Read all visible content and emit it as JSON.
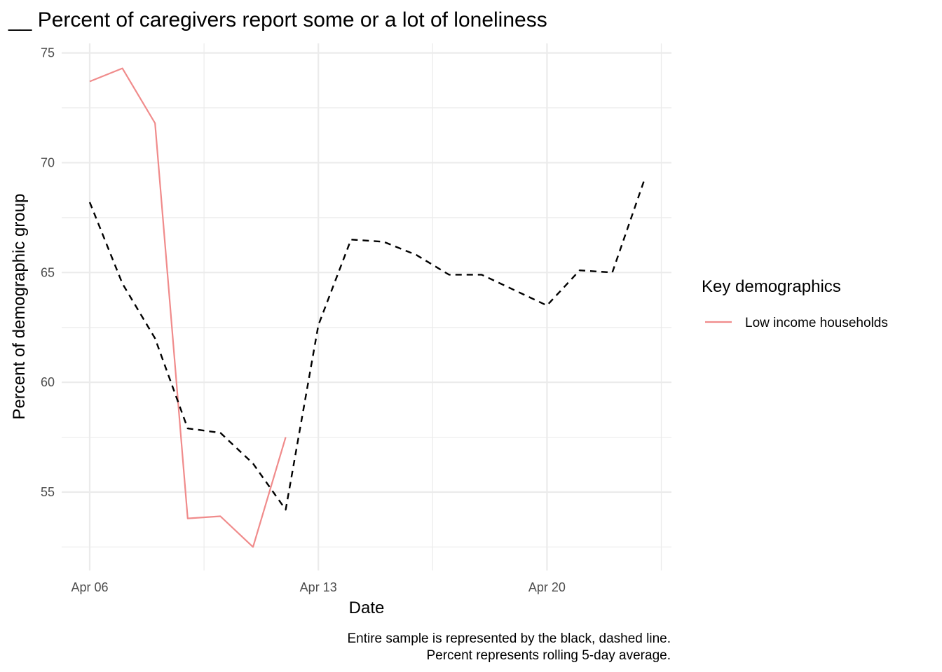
{
  "chart_data": {
    "type": "line",
    "title": "__ Percent of caregivers report some or a lot of loneliness",
    "xlabel": "Date",
    "ylabel": "Percent of demographic group",
    "x_tick_labels": [
      "Apr 06",
      "Apr 13",
      "Apr 20"
    ],
    "y_tick_labels": [
      "55",
      "60",
      "65",
      "70",
      "75"
    ],
    "legend_title": "Key demographics",
    "legend_position": "right",
    "grid": true,
    "caption": [
      "Entire sample is represented by the black, dashed line.",
      "Percent represents rolling 5-day average."
    ],
    "series": [
      {
        "name": "Low income households",
        "color": "#f08b8b",
        "style": "solid",
        "x": [
          "2020-04-06",
          "2020-04-07",
          "2020-04-08",
          "2020-04-09",
          "2020-04-10",
          "2020-04-11",
          "2020-04-12"
        ],
        "values": [
          73.7,
          74.3,
          71.8,
          53.8,
          53.9,
          52.5,
          57.5
        ]
      },
      {
        "color": "#000000",
        "style": "dashed",
        "x": [
          "2020-04-06",
          "2020-04-07",
          "2020-04-08",
          "2020-04-09",
          "2020-04-10",
          "2020-04-11",
          "2020-04-12",
          "2020-04-13",
          "2020-04-14",
          "2020-04-15",
          "2020-04-16",
          "2020-04-17",
          "2020-04-18",
          "2020-04-19",
          "2020-04-20",
          "2020-04-21",
          "2020-04-22",
          "2020-04-23"
        ],
        "values": [
          68.2,
          64.5,
          62.0,
          57.9,
          57.7,
          56.3,
          54.2,
          62.6,
          66.5,
          66.4,
          65.8,
          64.9,
          64.9,
          64.2,
          63.5,
          65.1,
          65.0,
          69.3
        ]
      }
    ]
  }
}
